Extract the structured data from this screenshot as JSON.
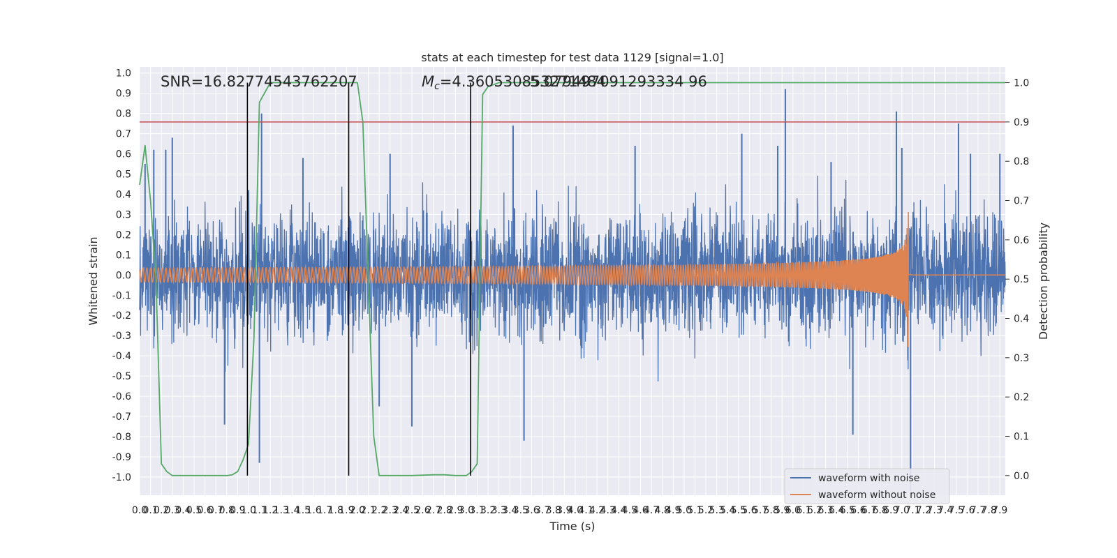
{
  "chart_data": {
    "type": "line",
    "title": "stats at each timestep for test data 1129 [signal=1.0]",
    "xlabel": "Time (s)",
    "ylabel": "Whitened strain",
    "y2label": "Detection probability",
    "xlim": [
      0.0,
      7.95
    ],
    "ylim": [
      -1.09,
      1.03
    ],
    "y2lim": [
      -0.05,
      1.04
    ],
    "x_ticks": [
      "0.0",
      "0.1",
      "0.2",
      "0.3",
      "0.4",
      "0.5",
      "0.6",
      "0.7",
      "0.8",
      "0.9",
      "1.0",
      "1.1",
      "1.2",
      "1.3",
      "1.4",
      "1.5",
      "1.6",
      "1.7",
      "1.8",
      "1.9",
      "2.0",
      "2.1",
      "2.2",
      "2.3",
      "2.4",
      "2.5",
      "2.6",
      "2.7",
      "2.8",
      "2.9",
      "3.0",
      "3.1",
      "3.2",
      "3.3",
      "3.4",
      "3.5",
      "3.6",
      "3.7",
      "3.8",
      "3.9",
      "4.0",
      "4.1",
      "4.2",
      "4.3",
      "4.4",
      "4.5",
      "4.6",
      "4.7",
      "4.8",
      "4.9",
      "5.0",
      "5.1",
      "5.2",
      "5.3",
      "5.4",
      "5.5",
      "5.6",
      "5.7",
      "5.8",
      "5.9",
      "6.0",
      "6.1",
      "6.2",
      "6.3",
      "6.4",
      "6.5",
      "6.6",
      "6.7",
      "6.8",
      "6.9",
      "7.0",
      "7.1",
      "7.2",
      "7.3",
      "7.4",
      "7.5",
      "7.6",
      "7.7",
      "7.8",
      "7.9"
    ],
    "y_ticks": [
      "1.0",
      "0.9",
      "0.8",
      "0.7",
      "0.6",
      "0.5",
      "0.4",
      "0.3",
      "0.2",
      "0.1",
      "0.0",
      "-0.1",
      "-0.2",
      "-0.3",
      "-0.4",
      "-0.5",
      "-0.6",
      "-0.7",
      "-0.8",
      "-0.9",
      "-1.0"
    ],
    "y2_ticks": [
      "1.0",
      "0.9",
      "0.8",
      "0.7",
      "0.6",
      "0.5",
      "0.4",
      "0.3",
      "0.2",
      "0.1",
      "0.0"
    ],
    "annotations": {
      "snr": "SNR=16.82774543762207",
      "mc_prefix": "M",
      "mc_sub": "c",
      "mc_value": "=4.360530853271484",
      "mc_overlap": "5.079497091293334 96"
    },
    "series": [
      {
        "name": "waveform with noise",
        "color": "#4c72b0",
        "kind": "noise",
        "envelope_y": 0.3,
        "peaks": [
          [
            0.05,
            0.55
          ],
          [
            0.13,
            0.62
          ],
          [
            0.24,
            0.62
          ],
          [
            0.3,
            0.68
          ],
          [
            0.78,
            -0.74
          ],
          [
            1.0,
            0.42
          ],
          [
            1.12,
            0.8
          ],
          [
            1.1,
            -0.93
          ],
          [
            1.5,
            0.58
          ],
          [
            2.2,
            -0.65
          ],
          [
            2.3,
            0.6
          ],
          [
            2.5,
            -0.75
          ],
          [
            3.43,
            0.74
          ],
          [
            3.53,
            -0.82
          ],
          [
            4.55,
            0.64
          ],
          [
            5.53,
            0.7
          ],
          [
            5.86,
            0.64
          ],
          [
            5.93,
            0.92
          ],
          [
            6.35,
            0.56
          ],
          [
            6.55,
            -0.79
          ],
          [
            6.95,
            0.81
          ],
          [
            7.0,
            0.63
          ],
          [
            7.08,
            -1.07
          ],
          [
            7.52,
            0.75
          ],
          [
            7.63,
            0.6
          ],
          [
            7.9,
            0.6
          ]
        ]
      },
      {
        "name": "waveform without noise",
        "color": "#dd8452",
        "kind": "chirp",
        "t_merge": 7.06,
        "amp_start": 0.035,
        "amp_peak": 0.37
      },
      {
        "name": "",
        "color": "#55a868",
        "kind": "probability",
        "x": [
          0.0,
          0.05,
          0.1,
          0.15,
          0.2,
          0.25,
          0.3,
          0.5,
          0.7,
          0.8,
          0.85,
          0.9,
          0.95,
          1.0,
          1.05,
          1.1,
          1.2,
          1.4,
          1.6,
          1.8,
          1.9,
          1.95,
          2.0,
          2.05,
          2.1,
          2.15,
          2.2,
          2.5,
          2.7,
          2.8,
          2.9,
          3.0,
          3.05,
          3.1,
          3.15,
          3.2,
          3.3,
          3.5,
          4.0,
          5.0,
          6.0,
          7.0,
          7.95
        ],
        "values": [
          0.74,
          0.84,
          0.7,
          0.5,
          0.03,
          0.01,
          0.0,
          0.0,
          0.0,
          0.0,
          0.002,
          0.01,
          0.04,
          0.08,
          0.35,
          0.95,
          1.0,
          1.0,
          1.0,
          1.0,
          1.0,
          1.0,
          1.0,
          0.9,
          0.5,
          0.1,
          0.0,
          0.0,
          0.002,
          0.002,
          0.0,
          0.0,
          0.01,
          0.03,
          0.97,
          0.99,
          1.0,
          1.0,
          1.0,
          1.0,
          1.0,
          1.0,
          1.0
        ]
      }
    ],
    "threshold_y2": 0.9,
    "threshold_color": "#c44e52",
    "vertical_lines_x": [
      0.99,
      1.92,
      3.04
    ],
    "vline_range_y2": [
      0.0,
      1.0
    ],
    "legend": {
      "placement": "lower-right",
      "entries": [
        "waveform with noise",
        "waveform without noise"
      ]
    },
    "grid": true
  }
}
